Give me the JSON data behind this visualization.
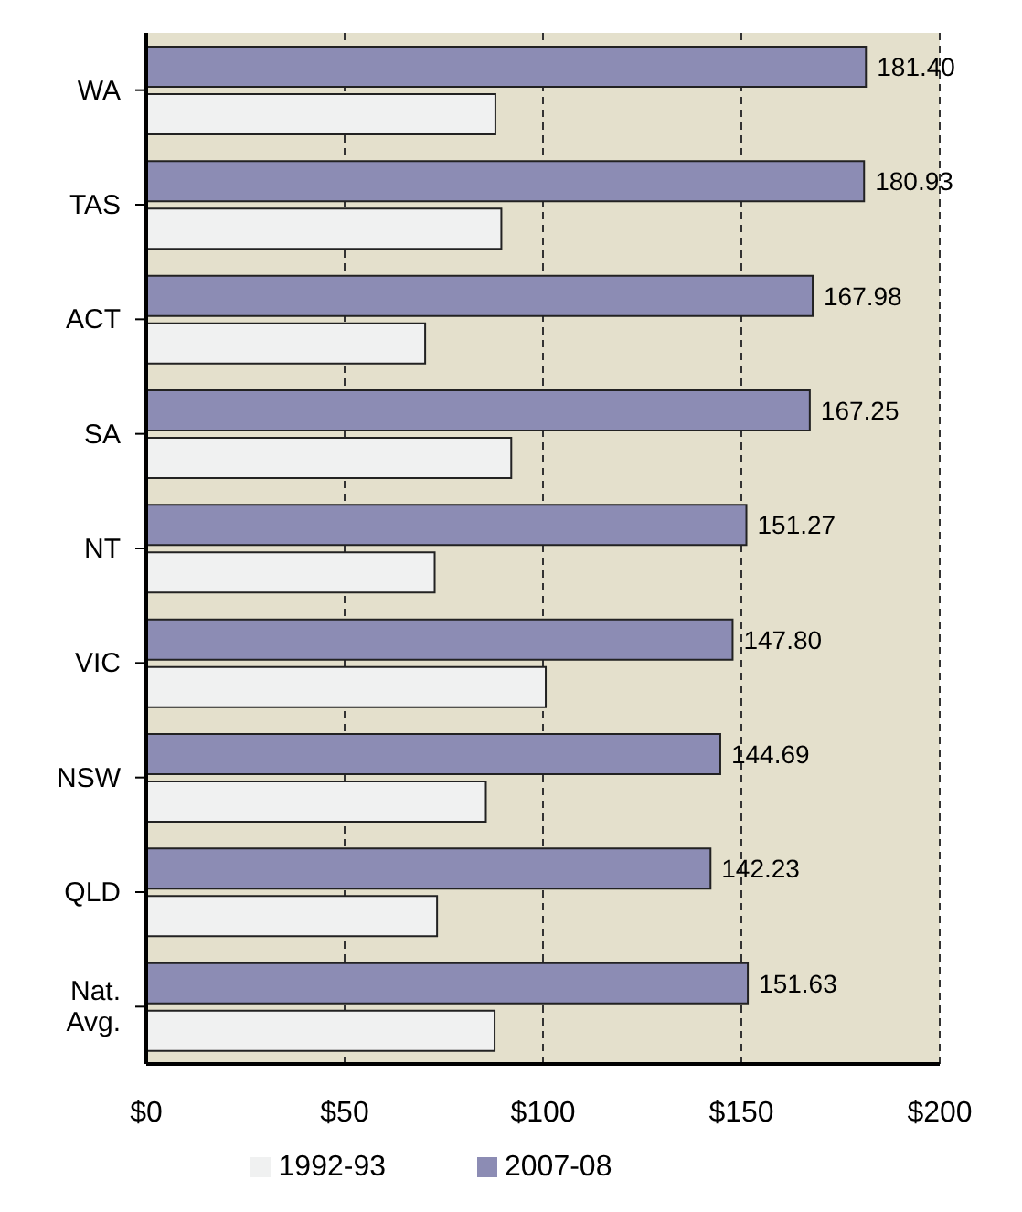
{
  "chart_data": {
    "type": "bar",
    "orientation": "horizontal",
    "categories": [
      "WA",
      "TAS",
      "ACT",
      "SA",
      "NT",
      "VIC",
      "NSW",
      "QLD",
      "Nat. Avg."
    ],
    "series": [
      {
        "name": "2007-08",
        "color": "#8c8cb4",
        "values": [
          181.4,
          180.93,
          167.98,
          167.25,
          151.27,
          147.8,
          144.69,
          142.23,
          151.63
        ],
        "value_labels": [
          "181.40",
          "180.93",
          "167.98",
          "167.25",
          "151.27",
          "147.80",
          "144.69",
          "142.23",
          "151.63"
        ]
      },
      {
        "name": "1992-93",
        "color": "#f0f1f1",
        "values": [
          88,
          89.5,
          70.3,
          92,
          72.7,
          100.7,
          85.6,
          73.3,
          87.8
        ]
      }
    ],
    "xlim": [
      0,
      200
    ],
    "xticks": [
      {
        "value": 0,
        "label": "$0"
      },
      {
        "value": 50,
        "label": "$50"
      },
      {
        "value": 100,
        "label": "$100"
      },
      {
        "value": 150,
        "label": "$150"
      },
      {
        "value": 200,
        "label": "$200"
      }
    ],
    "grid": "x",
    "legend": "bottom"
  }
}
